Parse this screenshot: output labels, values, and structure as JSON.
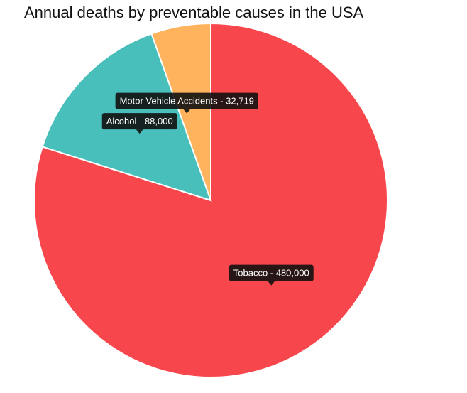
{
  "chart_data": {
    "type": "pie",
    "title": "Annual deaths by preventable causes in the USA",
    "slices": [
      {
        "label": "Tobacco",
        "value": 480000,
        "value_text": "480,000",
        "color": "#f7474c"
      },
      {
        "label": "Alcohol",
        "value": 88000,
        "value_text": "88,000",
        "color": "#49bfbb"
      },
      {
        "label": "Motor Vehicle Accidents",
        "value": 32719,
        "value_text": "32,719",
        "color": "#ffb35c"
      }
    ],
    "start_angle": "12 o'clock",
    "direction": "clockwise",
    "legend": "none"
  }
}
